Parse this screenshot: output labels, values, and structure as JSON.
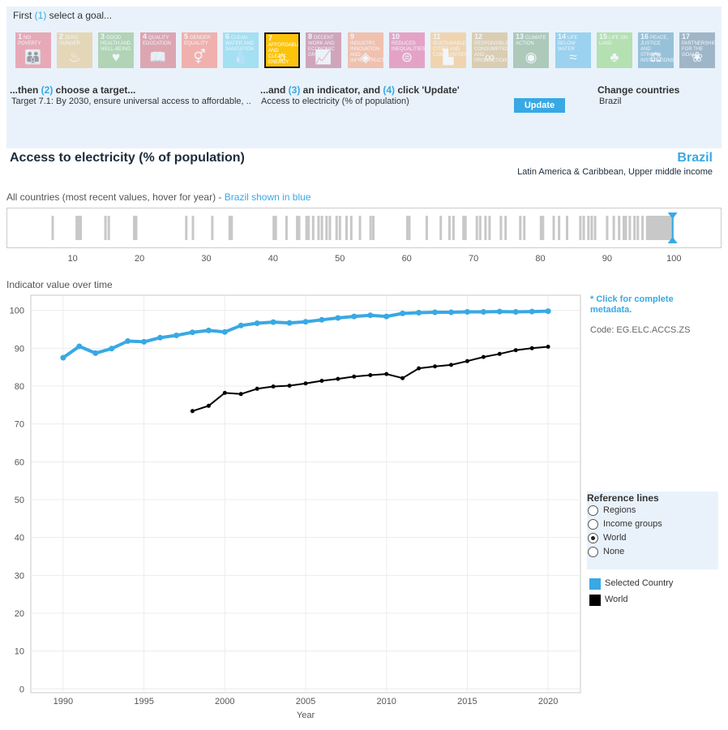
{
  "selector": {
    "goal_prompt_pre": "First ",
    "goal_step": "(1)",
    "goal_prompt_post": " select a goal...",
    "target_prompt_pre": "...then ",
    "target_step": "(2)",
    "target_prompt_post": " choose a target...",
    "target_value": "Target 7.1: By 2030, ensure universal access to affordable, ..",
    "indicator_prompt_pre": "...and ",
    "indicator_step": "(3)",
    "indicator_prompt_mid": " an indicator, and ",
    "indicator_step2": "(4)",
    "indicator_prompt_post": " click 'Update'",
    "indicator_value": "Access to electricity (% of population)",
    "update_label": "Update",
    "countries_label": "Change countries",
    "countries_value": "Brazil"
  },
  "goals": [
    {
      "num": "1",
      "label": "NO POVERTY",
      "color": "#e5243b",
      "icon": "people-icon",
      "glyph": "👪"
    },
    {
      "num": "2",
      "label": "ZERO HUNGER",
      "color": "#dda63a",
      "icon": "bowl-icon",
      "glyph": "♨"
    },
    {
      "num": "3",
      "label": "GOOD HEALTH AND WELL-BEING",
      "color": "#4c9f38",
      "icon": "heartbeat-icon",
      "glyph": "♥"
    },
    {
      "num": "4",
      "label": "QUALITY EDUCATION",
      "color": "#c5192d",
      "icon": "book-icon",
      "glyph": "📖"
    },
    {
      "num": "5",
      "label": "GENDER EQUALITY",
      "color": "#ff3a21",
      "icon": "gender-icon",
      "glyph": "⚥"
    },
    {
      "num": "6",
      "label": "CLEAN WATER AND SANITATION",
      "color": "#26bde2",
      "icon": "water-icon",
      "glyph": "💧"
    },
    {
      "num": "7",
      "label": "AFFORDABLE AND CLEAN ENERGY",
      "color": "#fcc30b",
      "icon": "sun-icon",
      "glyph": "☼"
    },
    {
      "num": "8",
      "label": "DECENT WORK AND ECONOMIC GROWTH",
      "color": "#a21942",
      "icon": "growth-chart-icon",
      "glyph": "📈"
    },
    {
      "num": "9",
      "label": "INDUSTRY, INNOVATION AND INFRASTRUCTURE",
      "color": "#fd6925",
      "icon": "cubes-icon",
      "glyph": "◈"
    },
    {
      "num": "10",
      "label": "REDUCED INEQUALITIES",
      "color": "#dd1367",
      "icon": "equal-icon",
      "glyph": "⊜"
    },
    {
      "num": "11",
      "label": "SUSTAINABLE CITIES AND COMMUNITIES",
      "color": "#fd9d24",
      "icon": "city-icon",
      "glyph": "▙"
    },
    {
      "num": "12",
      "label": "RESPONSIBLE CONSUMPTION AND PRODUCTION",
      "color": "#bf8b2e",
      "icon": "infinity-icon",
      "glyph": "∞"
    },
    {
      "num": "13",
      "label": "CLIMATE ACTION",
      "color": "#3f7e44",
      "icon": "eye-globe-icon",
      "glyph": "◉"
    },
    {
      "num": "14",
      "label": "LIFE BELOW WATER",
      "color": "#0a97d9",
      "icon": "fish-icon",
      "glyph": "≈"
    },
    {
      "num": "15",
      "label": "LIFE ON LAND",
      "color": "#56c02b",
      "icon": "tree-icon",
      "glyph": "♣"
    },
    {
      "num": "16",
      "label": "PEACE, JUSTICE AND STRONG INSTITUTIONS",
      "color": "#00689d",
      "icon": "dove-icon",
      "glyph": "⚖"
    },
    {
      "num": "17",
      "label": "PARTNERSHIPS FOR THE GOALS",
      "color": "#19486a",
      "icon": "flower-icon",
      "glyph": "❀"
    }
  ],
  "selected_goal": "7",
  "header": {
    "indicator_title": "Access to electricity (% of population)",
    "country": "Brazil",
    "country_info": "Latin America & Caribbean, Upper middle income"
  },
  "distribution": {
    "label_pre": "All countries (most recent values, hover for year) - ",
    "label_highlight": "Brazil shown in blue",
    "highlight_color": "#38a9e4",
    "tick_color": "#c8c8c8",
    "ticks": [
      10,
      20,
      30,
      40,
      50,
      60,
      70,
      80,
      90,
      100
    ],
    "selected_value": 99.8,
    "values": [
      7.0,
      10.6,
      10.9,
      11.2,
      14.9,
      15.4,
      19.2,
      19.5,
      27.0,
      28.0,
      30.9,
      33.5,
      33.8,
      40.1,
      40.4,
      42.0,
      43.6,
      43.9,
      45.0,
      45.3,
      46.0,
      46.8,
      47.3,
      48.0,
      48.5,
      49.5,
      50.0,
      51.0,
      51.7,
      53.0,
      54.6,
      55.0,
      60.1,
      60.4,
      63.0,
      65.1,
      66.4,
      67.0,
      68.5,
      68.8,
      70.5,
      71.0,
      71.8,
      72.4,
      74.1,
      74.8,
      77.0,
      77.6,
      80.1,
      80.4,
      82.0,
      82.8,
      84.0,
      86.0,
      86.5,
      87.2,
      87.7,
      88.2,
      90.0,
      91.0,
      91.8,
      92.5,
      92.8,
      93.4,
      94.1,
      94.6,
      95.3,
      96.0,
      96.2,
      96.4,
      96.6,
      96.8,
      97.0,
      97.2,
      97.4,
      97.6,
      97.8,
      98.0,
      98.2,
      98.4,
      98.6,
      98.8,
      99.0,
      99.2,
      99.4,
      99.5,
      99.6,
      99.7,
      99.8
    ]
  },
  "chart_section": {
    "label": "Indicator value over time",
    "metadata_link": "* Click for complete metadata.",
    "code": "Code: EG.ELC.ACCS.ZS"
  },
  "chart_data": {
    "type": "line",
    "xlabel": "Year",
    "ylabel": "",
    "xlim": [
      1988.0,
      2022.0
    ],
    "ylim": [
      -1.0,
      104.0
    ],
    "xticks": [
      1990,
      1995,
      2000,
      2005,
      2010,
      2015,
      2020
    ],
    "yticks": [
      0,
      10,
      20,
      30,
      40,
      50,
      60,
      70,
      80,
      90,
      100
    ],
    "grid": true,
    "series": [
      {
        "name": "Selected Country",
        "color": "#38a9e4",
        "x": [
          1990,
          1991,
          1992,
          1993,
          1994,
          1995,
          1996,
          1997,
          1998,
          1999,
          2000,
          2001,
          2002,
          2003,
          2004,
          2005,
          2006,
          2007,
          2008,
          2009,
          2010,
          2011,
          2012,
          2013,
          2014,
          2015,
          2016,
          2017,
          2018,
          2019,
          2020
        ],
        "values": [
          87.5,
          90.5,
          88.7,
          89.9,
          91.9,
          91.7,
          92.8,
          93.4,
          94.2,
          94.7,
          94.3,
          96.0,
          96.6,
          96.9,
          96.7,
          97.0,
          97.5,
          98.0,
          98.4,
          98.7,
          98.4,
          99.2,
          99.4,
          99.5,
          99.5,
          99.6,
          99.6,
          99.7,
          99.6,
          99.7,
          99.8
        ]
      },
      {
        "name": "World",
        "color": "#000000",
        "x": [
          1998,
          1999,
          2000,
          2001,
          2002,
          2003,
          2004,
          2005,
          2006,
          2007,
          2008,
          2009,
          2010,
          2011,
          2012,
          2013,
          2014,
          2015,
          2016,
          2017,
          2018,
          2019,
          2020
        ],
        "values": [
          73.4,
          74.8,
          78.2,
          77.9,
          79.3,
          79.9,
          80.1,
          80.7,
          81.4,
          81.9,
          82.5,
          82.9,
          83.2,
          82.1,
          84.7,
          85.2,
          85.6,
          86.6,
          87.7,
          88.5,
          89.5,
          90.0,
          90.4
        ]
      }
    ]
  },
  "reference_lines": {
    "title": "Reference lines",
    "options": [
      "Regions",
      "Income groups",
      "World",
      "None"
    ],
    "selected": "World"
  },
  "legend": [
    {
      "label": "Selected Country",
      "color": "#38a9e4"
    },
    {
      "label": "World",
      "color": "#000000"
    }
  ]
}
